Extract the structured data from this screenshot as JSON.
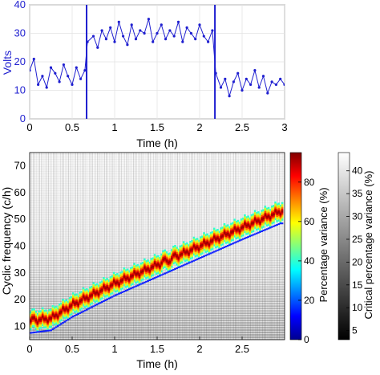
{
  "chart_data": [
    {
      "type": "line",
      "ylabel": "Volts",
      "xlabel": "Time (h)",
      "xlim": [
        0,
        3
      ],
      "ylim": [
        0,
        40
      ],
      "xticks": [
        0,
        0.5,
        1,
        1.5,
        2,
        2.5,
        3
      ],
      "xtick_labels": [
        "0",
        "0.5",
        "1",
        "1.5",
        "2",
        "2.5",
        "3"
      ],
      "yticks": [
        0,
        10,
        20,
        30,
        40
      ],
      "ytick_labels": [
        "0",
        "10",
        "20",
        "30",
        "40"
      ],
      "grid": true,
      "line_color": "#1f1fd0",
      "vertical_markers_x": [
        0.67,
        2.18
      ],
      "series": [
        {
          "x": [
            0.0,
            0.05,
            0.1,
            0.15,
            0.2,
            0.25,
            0.3,
            0.35,
            0.4,
            0.45,
            0.5,
            0.55,
            0.6,
            0.65,
            0.68,
            0.75,
            0.8,
            0.85,
            0.9,
            0.95,
            1.0,
            1.05,
            1.1,
            1.15,
            1.2,
            1.25,
            1.3,
            1.35,
            1.4,
            1.45,
            1.5,
            1.55,
            1.6,
            1.65,
            1.7,
            1.75,
            1.8,
            1.85,
            1.9,
            1.95,
            2.0,
            2.05,
            2.1,
            2.15,
            2.19,
            2.25,
            2.3,
            2.35,
            2.4,
            2.45,
            2.5,
            2.55,
            2.6,
            2.65,
            2.7,
            2.75,
            2.8,
            2.85,
            2.9,
            2.95,
            3.0
          ],
          "y": [
            17,
            21,
            12,
            15,
            11,
            18,
            16,
            13,
            19,
            15,
            12,
            18,
            14,
            17,
            27,
            29,
            25,
            31,
            28,
            32,
            27,
            34,
            29,
            26,
            33,
            28,
            31,
            30,
            35,
            27,
            30,
            33,
            28,
            31,
            29,
            34,
            27,
            32,
            30,
            28,
            33,
            29,
            27,
            31,
            16,
            11,
            14,
            8,
            13,
            16,
            10,
            14,
            12,
            17,
            11,
            15,
            9,
            13,
            12,
            14,
            12
          ]
        }
      ]
    },
    {
      "type": "heatmap",
      "ylabel": "Cyclic frequency (c/h)",
      "xlabel": "Time (h)",
      "xlim": [
        0,
        3
      ],
      "ylim": [
        5,
        75
      ],
      "xticks": [
        0,
        0.5,
        1,
        1.5,
        2,
        2.5
      ],
      "xtick_labels": [
        "0",
        "0.5",
        "1",
        "1.5",
        "2",
        "2.5"
      ],
      "yticks": [
        10,
        20,
        30,
        40,
        50,
        60,
        70
      ],
      "ytick_labels": [
        "10",
        "20",
        "30",
        "40",
        "50",
        "60",
        "70"
      ],
      "ridge_x": [
        0,
        0.25,
        0.5,
        1.0,
        1.5,
        2.0,
        2.5,
        2.95
      ],
      "ridge_y": [
        12,
        13,
        18,
        26,
        33,
        40,
        47,
        53
      ],
      "colorbar_main": {
        "label": "Percentage variance (%)",
        "range": [
          0,
          95
        ],
        "ticks": [
          0,
          20,
          40,
          60,
          80
        ],
        "tick_labels": [
          "0",
          "20",
          "40",
          "60",
          "80"
        ],
        "colormap": "jet"
      },
      "colorbar_critical": {
        "label": "Critical percentage variance (%)",
        "range": [
          3,
          44
        ],
        "ticks": [
          5,
          10,
          15,
          20,
          25,
          30,
          35,
          40
        ],
        "tick_labels": [
          "5",
          "10",
          "15",
          "20",
          "25",
          "30",
          "35",
          "40"
        ],
        "colormap": "gray"
      }
    }
  ]
}
